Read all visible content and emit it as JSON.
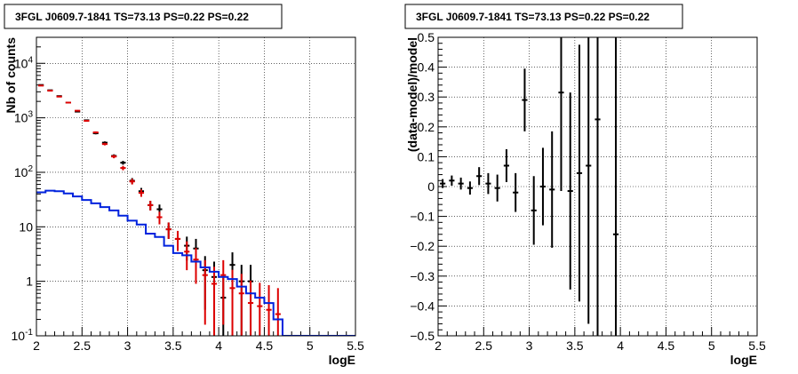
{
  "chart_data": [
    {
      "type": "line",
      "title": "3FGL J0609.7-1841 TS=73.13 PS=0.22 PS=0.22",
      "xlabel": "logE",
      "ylabel": "Nb of counts",
      "xlim": [
        2,
        5.5
      ],
      "ylim": [
        0.1,
        30000
      ],
      "yscale": "log",
      "grid": true,
      "x_ticks": [
        "2",
        "2.5",
        "3",
        "3.5",
        "4",
        "4.5",
        "5",
        "5.5"
      ],
      "y_ticks": [
        {
          "value": 0.1,
          "base": "10",
          "exp": "-1"
        },
        {
          "value": 1,
          "base": "1",
          "exp": ""
        },
        {
          "value": 10,
          "base": "10",
          "exp": ""
        },
        {
          "value": 100,
          "base": "10",
          "exp": "2"
        },
        {
          "value": 1000,
          "base": "10",
          "exp": "3"
        },
        {
          "value": 10000,
          "base": "10",
          "exp": "4"
        }
      ],
      "bin_width": 0.1,
      "series": [
        {
          "color": "#000000",
          "kind": "points",
          "x": [
            2.05,
            2.15,
            2.25,
            2.35,
            2.45,
            2.55,
            2.65,
            2.75,
            2.85,
            2.95,
            3.05,
            3.15,
            3.25,
            3.35,
            3.45,
            3.55,
            3.65,
            3.75,
            3.85,
            3.95,
            4.05,
            4.15,
            4.25,
            4.35,
            4.45,
            4.55,
            4.65
          ],
          "y": [
            4000,
            3200,
            2500,
            1900,
            1300,
            900,
            520,
            350,
            200,
            150,
            70,
            45,
            25,
            21,
            9,
            6,
            4.5,
            4,
            1.6,
            1.2,
            0.5,
            2,
            1,
            1,
            0,
            0,
            0
          ],
          "yerr": [
            63,
            57,
            50,
            44,
            36,
            30,
            23,
            19,
            14,
            12,
            8.4,
            6.7,
            5,
            4.6,
            3,
            2.4,
            2.1,
            2,
            1.3,
            1.1,
            0.7,
            1.4,
            1,
            1,
            0,
            0,
            0
          ]
        },
        {
          "color": "#dd0000",
          "kind": "points",
          "x": [
            2.05,
            2.15,
            2.25,
            2.35,
            2.45,
            2.55,
            2.65,
            2.75,
            2.85,
            2.95,
            3.05,
            3.15,
            3.25,
            3.35,
            3.45,
            3.55,
            3.65,
            3.75,
            3.85,
            3.95,
            4.05,
            4.15,
            4.25,
            4.35,
            4.45,
            4.55,
            4.65
          ],
          "y": [
            3900,
            3150,
            2450,
            1900,
            1350,
            880,
            540,
            330,
            195,
            120,
            68,
            42,
            25,
            15,
            9,
            6,
            3.5,
            2.5,
            1.3,
            0.9,
            1.3,
            0.75,
            0.6,
            0.4,
            0.35,
            0.3,
            0.25
          ],
          "yerr": [
            62,
            56,
            49,
            44,
            37,
            30,
            23,
            18,
            14,
            11,
            8.2,
            6.5,
            5,
            3.9,
            3,
            2.4,
            1.9,
            1.6,
            1.14,
            0.95,
            1.14,
            0.87,
            0.77,
            0.63,
            0.59,
            0.55,
            0.5
          ]
        },
        {
          "color": "#0022dd",
          "kind": "step",
          "bin_edges": [
            2.0,
            2.1,
            2.2,
            2.3,
            2.4,
            2.5,
            2.6,
            2.7,
            2.8,
            2.9,
            3.0,
            3.1,
            3.2,
            3.3,
            3.4,
            3.5,
            3.6,
            3.7,
            3.8,
            3.9,
            4.0,
            4.1,
            4.2,
            4.3,
            4.4,
            4.5,
            4.6,
            4.7,
            4.8,
            4.9,
            5.0,
            5.1,
            5.2,
            5.3,
            5.4,
            5.5
          ],
          "values": [
            43,
            46,
            45,
            41,
            36,
            31,
            27,
            23,
            20,
            16,
            13,
            11,
            7.5,
            6.5,
            4.5,
            3.3,
            3,
            2.3,
            1.8,
            1.5,
            1.2,
            1.1,
            0.8,
            0.6,
            0.5,
            0.4,
            0.2,
            0.1,
            0.1,
            0.1,
            0.1,
            0.1,
            0.1,
            0.1,
            0.1
          ]
        }
      ]
    },
    {
      "type": "scatter",
      "title": "3FGL J0609.7-1841 TS=73.13 PS=0.22 PS=0.22",
      "xlabel": "logE",
      "ylabel": "(data-model)/model",
      "xlim": [
        2,
        5.5
      ],
      "ylim": [
        -0.5,
        0.5
      ],
      "grid": true,
      "x_ticks": [
        "2",
        "2.5",
        "3",
        "3.5",
        "4",
        "4.5",
        "5",
        "5.5"
      ],
      "y_ticks": [
        "−0.5",
        "−0.4",
        "−0.3",
        "−0.2",
        "−0.1",
        "0",
        "0.1",
        "0.2",
        "0.3",
        "0.4",
        "0.5"
      ],
      "y_tick_values": [
        -0.5,
        -0.4,
        -0.3,
        -0.2,
        -0.1,
        0,
        0.1,
        0.2,
        0.3,
        0.4,
        0.5
      ],
      "bin_width": 0.1,
      "series": [
        {
          "color": "#000000",
          "x": [
            2.05,
            2.15,
            2.25,
            2.35,
            2.45,
            2.55,
            2.65,
            2.75,
            2.85,
            2.95,
            3.05,
            3.15,
            3.25,
            3.35,
            3.45,
            3.55,
            3.65,
            3.75,
            3.95
          ],
          "y": [
            0.01,
            0.02,
            0.01,
            -0.005,
            0.035,
            0.01,
            -0.005,
            0.07,
            -0.02,
            0.29,
            -0.08,
            0.0,
            -0.01,
            0.315,
            -0.015,
            0.045,
            0.07,
            0.225,
            -0.16
          ],
          "yerr": [
            0.015,
            0.017,
            0.02,
            0.022,
            0.03,
            0.035,
            0.045,
            0.055,
            0.065,
            0.105,
            0.115,
            0.13,
            0.195,
            0.33,
            0.33,
            0.43,
            0.53,
            0.73,
            0.83
          ]
        }
      ]
    }
  ]
}
